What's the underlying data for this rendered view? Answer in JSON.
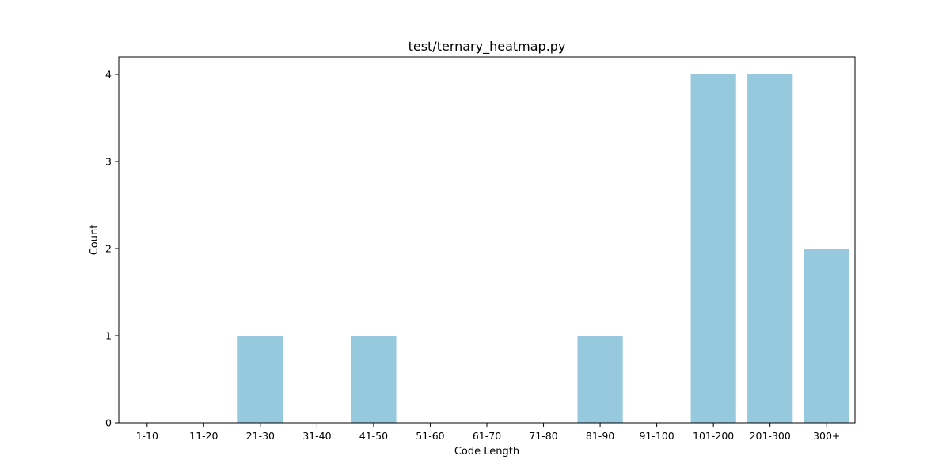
{
  "chart_data": {
    "type": "bar",
    "title": "test/ternary_heatmap.py",
    "xlabel": "Code Length",
    "ylabel": "Count",
    "categories": [
      "1-10",
      "11-20",
      "21-30",
      "31-40",
      "41-50",
      "51-60",
      "61-70",
      "71-80",
      "81-90",
      "91-100",
      "101-200",
      "201-300",
      "300+"
    ],
    "values": [
      0,
      0,
      1,
      0,
      1,
      0,
      0,
      0,
      1,
      0,
      4,
      4,
      2
    ],
    "ylim": [
      0,
      4.2
    ],
    "yticks": [
      0,
      1,
      2,
      3,
      4
    ],
    "grid": false,
    "bar_color": "#96c9de"
  }
}
